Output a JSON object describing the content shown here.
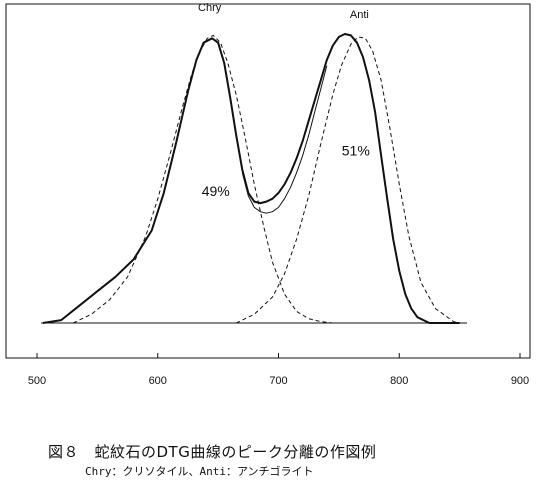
{
  "chart_data": {
    "type": "line",
    "title": "",
    "xlabel": "",
    "ylabel": "",
    "xlim": [
      500,
      900
    ],
    "x_ticks": [
      500,
      600,
      700,
      800,
      900
    ],
    "grid": false,
    "legend": "none",
    "series": [
      {
        "style": "solid-thick",
        "x": [
          505,
          520,
          535,
          550,
          565,
          580,
          595,
          605,
          615,
          625,
          632,
          638,
          645,
          650,
          655,
          660,
          665,
          670,
          675,
          680,
          685,
          690,
          695,
          700,
          705,
          710,
          715,
          720,
          725,
          730,
          735,
          740,
          745,
          750,
          755,
          760,
          765,
          770,
          775,
          780,
          785,
          790,
          795,
          800,
          805,
          810,
          815,
          820,
          825,
          830,
          835,
          840,
          845,
          850
        ],
        "y": [
          0.0,
          0.01,
          0.06,
          0.11,
          0.16,
          0.22,
          0.32,
          0.45,
          0.62,
          0.8,
          0.91,
          0.97,
          0.985,
          0.97,
          0.9,
          0.78,
          0.65,
          0.53,
          0.45,
          0.42,
          0.415,
          0.42,
          0.43,
          0.45,
          0.48,
          0.52,
          0.57,
          0.63,
          0.7,
          0.77,
          0.84,
          0.91,
          0.96,
          0.99,
          1.0,
          0.995,
          0.97,
          0.92,
          0.84,
          0.73,
          0.58,
          0.43,
          0.29,
          0.18,
          0.1,
          0.05,
          0.02,
          0.01,
          0.0,
          0.0,
          0.0,
          0.0,
          0.0,
          0.0
        ]
      },
      {
        "style": "solid-thin",
        "x": [
          670,
          675,
          680,
          685,
          690,
          695,
          700,
          705,
          710,
          715,
          720,
          725,
          730,
          735,
          740
        ],
        "y": [
          0.52,
          0.44,
          0.4,
          0.385,
          0.38,
          0.385,
          0.4,
          0.43,
          0.47,
          0.52,
          0.58,
          0.65,
          0.73,
          0.81,
          0.89
        ]
      },
      {
        "style": "dashed",
        "x": [
          530,
          545,
          560,
          575,
          590,
          600,
          610,
          620,
          628,
          635,
          641,
          646,
          652,
          658,
          665,
          672,
          680,
          688,
          695,
          705,
          715,
          725,
          735,
          745
        ],
        "y": [
          0.0,
          0.03,
          0.08,
          0.16,
          0.3,
          0.43,
          0.58,
          0.74,
          0.86,
          0.94,
          0.985,
          0.995,
          0.97,
          0.9,
          0.79,
          0.65,
          0.48,
          0.33,
          0.21,
          0.1,
          0.04,
          0.015,
          0.005,
          0.0
        ]
      },
      {
        "style": "dashed",
        "x": [
          665,
          680,
          695,
          705,
          715,
          725,
          735,
          745,
          752,
          760,
          766,
          772,
          778,
          785,
          792,
          800,
          808,
          818,
          830,
          845,
          850
        ],
        "y": [
          0.0,
          0.03,
          0.09,
          0.17,
          0.29,
          0.44,
          0.62,
          0.79,
          0.89,
          0.965,
          0.99,
          0.985,
          0.94,
          0.84,
          0.68,
          0.48,
          0.3,
          0.14,
          0.05,
          0.005,
          0.0
        ]
      }
    ],
    "annotations": [
      {
        "text": "Chry",
        "x": 643,
        "y": 1.08
      },
      {
        "text": "Anti",
        "x": 767,
        "y": 1.055
      },
      {
        "text": "49%",
        "x": 648,
        "y": 0.44
      },
      {
        "text": "51%",
        "x": 764,
        "y": 0.58
      }
    ]
  },
  "caption": {
    "title": "図８　蛇紋石のDTG曲線のピーク分離の作図例",
    "subtitle": "Chry：クリソタイル、Anti：アンチゴライト"
  }
}
